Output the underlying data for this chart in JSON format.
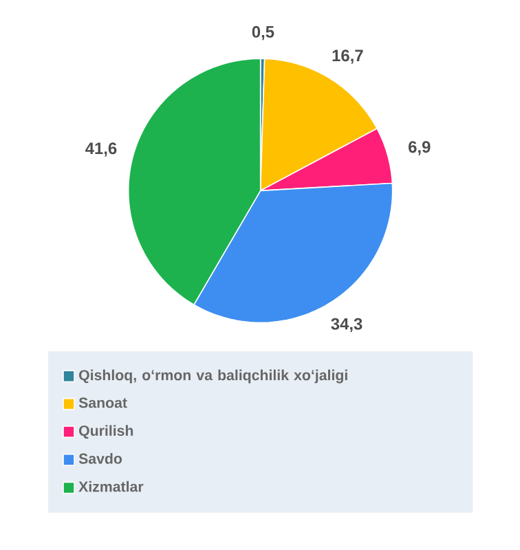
{
  "chart_data": {
    "type": "pie",
    "categories": [
      "Qishloq, oʻrmon va baliqchilik xoʻjaligi",
      "Sanoat",
      "Qurilish",
      "Savdo",
      "Xizmatlar"
    ],
    "values": [
      0.5,
      16.7,
      6.9,
      34.3,
      41.6
    ],
    "colors": [
      "#31859c",
      "#ffc000",
      "#ff1f78",
      "#3d8ef0",
      "#1db24e"
    ],
    "value_labels": [
      "0,5",
      "16,7",
      "6,9",
      "34,3",
      "41,6"
    ],
    "legend": "bottom"
  }
}
